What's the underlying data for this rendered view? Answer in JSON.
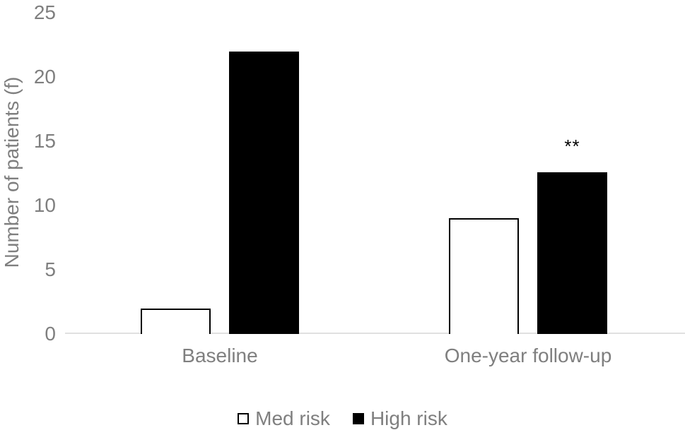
{
  "figure": {
    "background": "#ffffff",
    "text_color": "#7f7f7f",
    "axis_line_color": "#e0e0e0"
  },
  "chart_data": {
    "type": "bar",
    "title": "",
    "xlabel": "",
    "ylabel": "Number of patients (f)",
    "ylim": [
      0,
      25
    ],
    "yticks": [
      0,
      5,
      10,
      15,
      20,
      25
    ],
    "grid": "off",
    "legend_position": "bottom-center",
    "categories": [
      "Baseline",
      "One-year follow-up"
    ],
    "series": [
      {
        "name": "Med risk",
        "values": [
          2,
          9
        ],
        "fill": "#ffffff",
        "border": "#000000"
      },
      {
        "name": "High risk",
        "values": [
          22,
          12.6
        ],
        "fill": "#000000",
        "border": "#000000"
      }
    ],
    "annotations": [
      {
        "text": "**",
        "category_index": 1,
        "series_index": 1
      }
    ]
  }
}
